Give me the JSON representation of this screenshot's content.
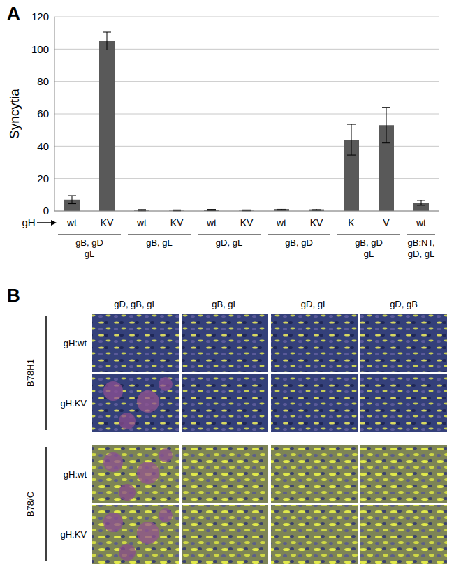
{
  "panel_labels": [
    "A",
    "B"
  ],
  "chart_data": {
    "type": "bar",
    "y_label": "Syncytia",
    "x_row_label": "gH",
    "categories": [
      "wt",
      "KV",
      "wt",
      "KV",
      "wt",
      "KV",
      "wt",
      "KV",
      "K",
      "V",
      "wt"
    ],
    "values": [
      7,
      105,
      0.3,
      0.2,
      0.4,
      0.2,
      0.8,
      0.6,
      44,
      53,
      5
    ],
    "errors": [
      2.5,
      5.5,
      0.2,
      0.1,
      0.2,
      0.1,
      0.3,
      0.3,
      9.5,
      11,
      1.5
    ],
    "groups": [
      {
        "label": [
          "gB, gD",
          "gL"
        ],
        "bars": 2
      },
      {
        "label": [
          "gB, gL"
        ],
        "bars": 2
      },
      {
        "label": [
          "gD, gL"
        ],
        "bars": 2
      },
      {
        "label": [
          "gB, gD"
        ],
        "bars": 2
      },
      {
        "label": [
          "gB, gD",
          "gL"
        ],
        "bars": 2
      },
      {
        "label": [
          "gB:NT,",
          "gD, gL"
        ],
        "bars": 1
      }
    ],
    "color": "#595959",
    "ylim": [
      0,
      120
    ],
    "yticks": [
      0,
      20,
      40,
      60,
      80,
      100,
      120
    ],
    "grid": true
  },
  "panel_b": {
    "columns": [
      "gD, gB, gL",
      "gB, gL",
      "gD, gL",
      "gD, gB"
    ],
    "groups": [
      {
        "label": "B78H1",
        "rows": [
          "gH:wt",
          "gH:KV"
        ]
      },
      {
        "label": "B78/C",
        "rows": [
          "gH:wt",
          "gH:KV"
        ]
      }
    ]
  }
}
